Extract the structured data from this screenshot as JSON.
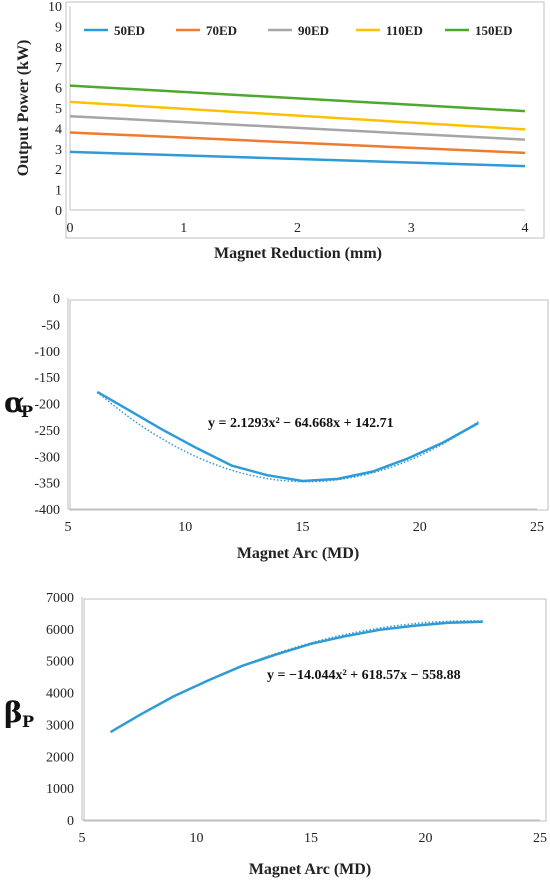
{
  "chart_data": [
    {
      "type": "line",
      "ylabel": "Output Power (kW)",
      "xlabel": "Magnet Reduction (mm)",
      "xlim": [
        0,
        4
      ],
      "ylim": [
        0,
        10
      ],
      "xticks": [
        0,
        1,
        2,
        3,
        4
      ],
      "yticks": [
        0,
        1,
        2,
        3,
        4,
        5,
        6,
        7,
        8,
        9,
        10
      ],
      "grid": false,
      "legend_position": "top",
      "x": [
        0,
        4
      ],
      "series": [
        {
          "name": "50ED",
          "color": "#2e9bd6",
          "values": [
            2.85,
            2.15
          ]
        },
        {
          "name": "70ED",
          "color": "#ee7b30",
          "values": [
            3.8,
            2.8
          ]
        },
        {
          "name": "90ED",
          "color": "#a5a5a5",
          "values": [
            4.6,
            3.45
          ]
        },
        {
          "name": "110ED",
          "color": "#ffc000",
          "values": [
            5.3,
            3.95
          ]
        },
        {
          "name": "150ED",
          "color": "#4ea72e",
          "values": [
            6.1,
            4.85
          ]
        }
      ]
    },
    {
      "type": "line",
      "ylabel_symbol": "α",
      "ylabel_sub": "P",
      "xlabel": "Magnet Arc (MD)",
      "xlim": [
        5,
        25
      ],
      "ylim": [
        -400,
        0
      ],
      "xticks": [
        5,
        10,
        15,
        20,
        25
      ],
      "yticks": [
        0,
        -50,
        -100,
        -150,
        -200,
        -250,
        -300,
        -350,
        -400
      ],
      "grid": false,
      "equation": "y = 2.1293x² − 64.668x + 142.71",
      "fit": {
        "a": 2.1293,
        "b": -64.668,
        "c": 142.71
      },
      "series": [
        {
          "color": "#2e9bd6",
          "x": [
            6.25,
            7.5,
            9,
            10.5,
            12,
            13.5,
            15,
            16.5,
            18,
            19.5,
            21,
            22.5
          ],
          "values": [
            -178,
            -210,
            -249,
            -285,
            -318,
            -336,
            -347,
            -343,
            -329,
            -304,
            -274,
            -237
          ]
        }
      ]
    },
    {
      "type": "line",
      "ylabel_symbol": "β",
      "ylabel_sub": "P",
      "xlabel": "Magnet Arc (MD)",
      "xlim": [
        5,
        25
      ],
      "ylim": [
        0,
        7000
      ],
      "xticks": [
        5,
        10,
        15,
        20,
        25
      ],
      "yticks": [
        0,
        1000,
        2000,
        3000,
        4000,
        5000,
        6000,
        7000
      ],
      "grid": false,
      "equation": "y = −14.044x² + 618.57x − 558.88",
      "fit": {
        "a": -14.044,
        "b": 618.57,
        "c": -558.88
      },
      "series": [
        {
          "color": "#2e9bd6",
          "x": [
            6.25,
            7.5,
            9,
            10.5,
            12,
            13.5,
            15,
            16.5,
            18,
            19.5,
            21,
            22.5
          ],
          "values": [
            2760,
            3290,
            3880,
            4380,
            4840,
            5200,
            5530,
            5770,
            5970,
            6100,
            6190,
            6220
          ]
        }
      ]
    }
  ]
}
